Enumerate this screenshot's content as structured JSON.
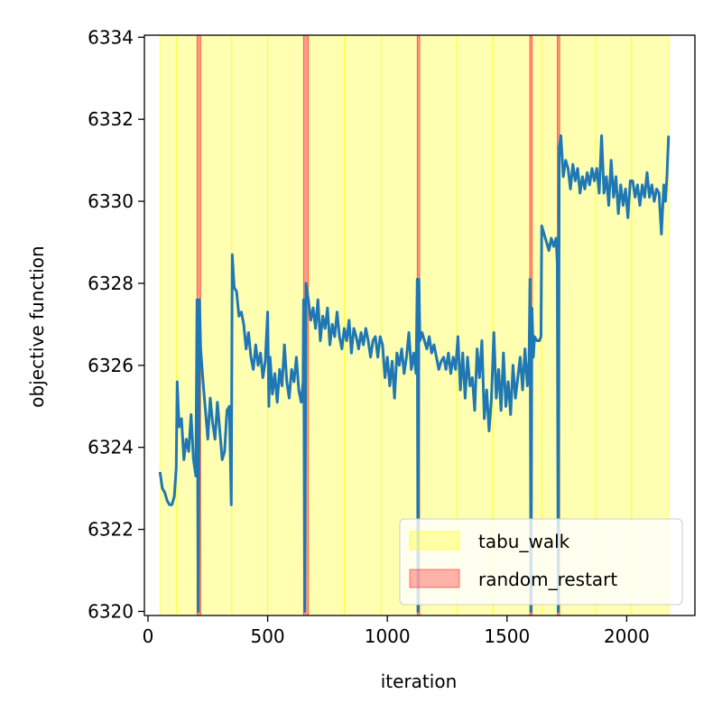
{
  "chart_data": {
    "type": "line",
    "title": "",
    "xlabel": "iteration",
    "ylabel": "objective function",
    "xlim": [
      -15,
      2285
    ],
    "ylim": [
      6319.9,
      6334.05
    ],
    "xticks": [
      0,
      500,
      1000,
      1500,
      2000
    ],
    "yticks": [
      6320,
      6322,
      6324,
      6326,
      6328,
      6330,
      6332,
      6334
    ],
    "grid": false,
    "legend_position": "lower-right",
    "legend": [
      {
        "label": "tabu_walk",
        "color": "#ffff00"
      },
      {
        "label": "random_restart",
        "color": "#ff0000"
      }
    ],
    "line_color": "#1f77b4",
    "tabu_walk_segments": [
      [
        50,
        120
      ],
      [
        120,
        205
      ],
      [
        220,
        350
      ],
      [
        350,
        500
      ],
      [
        500,
        650
      ],
      [
        670,
        820
      ],
      [
        820,
        975
      ],
      [
        975,
        1125
      ],
      [
        1135,
        1290
      ],
      [
        1290,
        1440
      ],
      [
        1440,
        1595
      ],
      [
        1605,
        1645
      ],
      [
        1645,
        1710
      ],
      [
        1720,
        1870
      ],
      [
        1870,
        2020
      ],
      [
        2020,
        2175
      ]
    ],
    "random_restart_spans": [
      [
        205,
        220
      ],
      [
        650,
        670
      ],
      [
        1125,
        1135
      ],
      [
        1595,
        1605
      ],
      [
        1710,
        1720
      ]
    ],
    "series": [
      {
        "name": "objective",
        "points": [
          [
            50,
            6323.4
          ],
          [
            60,
            6323.0
          ],
          [
            70,
            6322.9
          ],
          [
            80,
            6322.7
          ],
          [
            90,
            6322.6
          ],
          [
            100,
            6322.6
          ],
          [
            110,
            6322.8
          ],
          [
            118,
            6323.5
          ],
          [
            122,
            6325.6
          ],
          [
            130,
            6324.5
          ],
          [
            140,
            6324.7
          ],
          [
            150,
            6323.7
          ],
          [
            160,
            6324.2
          ],
          [
            170,
            6323.9
          ],
          [
            180,
            6324.8
          ],
          [
            190,
            6323.7
          ],
          [
            200,
            6323.3
          ],
          [
            205,
            6327.6
          ],
          [
            210,
            6320.0
          ],
          [
            215,
            6327.6
          ],
          [
            220,
            6326.4
          ],
          [
            230,
            6325.6
          ],
          [
            240,
            6324.9
          ],
          [
            250,
            6324.2
          ],
          [
            260,
            6325.2
          ],
          [
            270,
            6324.6
          ],
          [
            280,
            6324.2
          ],
          [
            290,
            6325.1
          ],
          [
            300,
            6324.4
          ],
          [
            310,
            6323.7
          ],
          [
            320,
            6323.9
          ],
          [
            330,
            6324.9
          ],
          [
            340,
            6325.0
          ],
          [
            348,
            6322.6
          ],
          [
            352,
            6328.7
          ],
          [
            360,
            6327.9
          ],
          [
            370,
            6327.8
          ],
          [
            380,
            6327.2
          ],
          [
            390,
            6327.3
          ],
          [
            400,
            6327.0
          ],
          [
            410,
            6326.4
          ],
          [
            420,
            6326.8
          ],
          [
            430,
            6326.2
          ],
          [
            440,
            6325.9
          ],
          [
            450,
            6326.5
          ],
          [
            460,
            6326.0
          ],
          [
            470,
            6326.3
          ],
          [
            480,
            6325.7
          ],
          [
            490,
            6326.1
          ],
          [
            500,
            6327.3
          ],
          [
            505,
            6325.0
          ],
          [
            510,
            6326.2
          ],
          [
            520,
            6325.3
          ],
          [
            530,
            6325.8
          ],
          [
            540,
            6325.1
          ],
          [
            550,
            6325.9
          ],
          [
            560,
            6325.5
          ],
          [
            570,
            6326.5
          ],
          [
            580,
            6325.6
          ],
          [
            590,
            6325.2
          ],
          [
            600,
            6325.9
          ],
          [
            610,
            6325.6
          ],
          [
            620,
            6326.2
          ],
          [
            630,
            6325.4
          ],
          [
            640,
            6325.1
          ],
          [
            648,
            6325.6
          ],
          [
            650,
            6327.6
          ],
          [
            655,
            6320.0
          ],
          [
            660,
            6328.0
          ],
          [
            670,
            6327.6
          ],
          [
            680,
            6327.1
          ],
          [
            690,
            6327.4
          ],
          [
            700,
            6326.9
          ],
          [
            710,
            6327.6
          ],
          [
            720,
            6326.6
          ],
          [
            730,
            6327.2
          ],
          [
            740,
            6326.9
          ],
          [
            750,
            6327.4
          ],
          [
            760,
            6326.5
          ],
          [
            770,
            6327.0
          ],
          [
            780,
            6326.7
          ],
          [
            790,
            6327.3
          ],
          [
            800,
            6326.7
          ],
          [
            810,
            6326.4
          ],
          [
            820,
            6326.9
          ],
          [
            830,
            6326.6
          ],
          [
            840,
            6327.1
          ],
          [
            850,
            6326.3
          ],
          [
            860,
            6326.9
          ],
          [
            870,
            6326.7
          ],
          [
            880,
            6326.4
          ],
          [
            890,
            6326.8
          ],
          [
            900,
            6326.5
          ],
          [
            910,
            6326.9
          ],
          [
            920,
            6326.6
          ],
          [
            930,
            6326.2
          ],
          [
            940,
            6326.6
          ],
          [
            950,
            6326.7
          ],
          [
            960,
            6326.2
          ],
          [
            970,
            6326.7
          ],
          [
            980,
            6326.5
          ],
          [
            990,
            6325.7
          ],
          [
            1000,
            6326.2
          ],
          [
            1010,
            6325.5
          ],
          [
            1020,
            6326.1
          ],
          [
            1030,
            6325.2
          ],
          [
            1040,
            6326.3
          ],
          [
            1050,
            6326.0
          ],
          [
            1060,
            6326.4
          ],
          [
            1070,
            6325.8
          ],
          [
            1080,
            6326.2
          ],
          [
            1090,
            6326.8
          ],
          [
            1100,
            6325.9
          ],
          [
            1110,
            6326.3
          ],
          [
            1120,
            6325.8
          ],
          [
            1125,
            6328.1
          ],
          [
            1128,
            6320.0
          ],
          [
            1132,
            6328.1
          ],
          [
            1136,
            6326.6
          ],
          [
            1145,
            6326.8
          ],
          [
            1155,
            6326.6
          ],
          [
            1165,
            6326.4
          ],
          [
            1175,
            6326.7
          ],
          [
            1185,
            6326.3
          ],
          [
            1195,
            6326.5
          ],
          [
            1205,
            6326.2
          ],
          [
            1215,
            6325.9
          ],
          [
            1225,
            6326.1
          ],
          [
            1235,
            6326.2
          ],
          [
            1245,
            6325.9
          ],
          [
            1255,
            6326.3
          ],
          [
            1265,
            6325.8
          ],
          [
            1275,
            6326.2
          ],
          [
            1285,
            6325.9
          ],
          [
            1295,
            6326.7
          ],
          [
            1305,
            6325.4
          ],
          [
            1315,
            6326.3
          ],
          [
            1325,
            6325.2
          ],
          [
            1335,
            6326.2
          ],
          [
            1345,
            6325.5
          ],
          [
            1355,
            6325.7
          ],
          [
            1365,
            6324.9
          ],
          [
            1375,
            6326.4
          ],
          [
            1385,
            6325.7
          ],
          [
            1395,
            6326.6
          ],
          [
            1405,
            6324.7
          ],
          [
            1415,
            6325.4
          ],
          [
            1425,
            6324.4
          ],
          [
            1435,
            6325.2
          ],
          [
            1445,
            6326.8
          ],
          [
            1455,
            6325.2
          ],
          [
            1465,
            6325.9
          ],
          [
            1475,
            6324.9
          ],
          [
            1485,
            6326.3
          ],
          [
            1495,
            6325.0
          ],
          [
            1505,
            6325.6
          ],
          [
            1515,
            6324.8
          ],
          [
            1525,
            6326.0
          ],
          [
            1535,
            6325.2
          ],
          [
            1545,
            6325.7
          ],
          [
            1555,
            6326.2
          ],
          [
            1565,
            6325.4
          ],
          [
            1575,
            6326.4
          ],
          [
            1585,
            6325.5
          ],
          [
            1592,
            6326.1
          ],
          [
            1596,
            6328.1
          ],
          [
            1600,
            6320.0
          ],
          [
            1604,
            6327.4
          ],
          [
            1610,
            6326.2
          ],
          [
            1615,
            6326.7
          ],
          [
            1625,
            6326.6
          ],
          [
            1635,
            6326.6
          ],
          [
            1642,
            6326.7
          ],
          [
            1645,
            6329.4
          ],
          [
            1655,
            6329.2
          ],
          [
            1665,
            6329.0
          ],
          [
            1675,
            6328.8
          ],
          [
            1685,
            6329.1
          ],
          [
            1695,
            6328.9
          ],
          [
            1705,
            6329.1
          ],
          [
            1710,
            6328.5
          ],
          [
            1714,
            6320.0
          ],
          [
            1718,
            6331.3
          ],
          [
            1725,
            6331.6
          ],
          [
            1735,
            6330.6
          ],
          [
            1745,
            6331.0
          ],
          [
            1755,
            6330.8
          ],
          [
            1765,
            6330.3
          ],
          [
            1775,
            6330.9
          ],
          [
            1785,
            6330.5
          ],
          [
            1795,
            6330.8
          ],
          [
            1805,
            6330.2
          ],
          [
            1815,
            6330.6
          ],
          [
            1825,
            6330.3
          ],
          [
            1835,
            6330.7
          ],
          [
            1845,
            6330.4
          ],
          [
            1855,
            6330.8
          ],
          [
            1865,
            6330.5
          ],
          [
            1875,
            6330.8
          ],
          [
            1885,
            6330.2
          ],
          [
            1895,
            6331.6
          ],
          [
            1905,
            6330.2
          ],
          [
            1915,
            6330.6
          ],
          [
            1925,
            6329.9
          ],
          [
            1935,
            6331.0
          ],
          [
            1945,
            6330.1
          ],
          [
            1955,
            6330.6
          ],
          [
            1965,
            6329.7
          ],
          [
            1975,
            6330.4
          ],
          [
            1985,
            6329.9
          ],
          [
            1995,
            6330.3
          ],
          [
            2005,
            6329.6
          ],
          [
            2015,
            6330.5
          ],
          [
            2025,
            6330.5
          ],
          [
            2035,
            6330.1
          ],
          [
            2045,
            6330.4
          ],
          [
            2055,
            6329.9
          ],
          [
            2065,
            6330.4
          ],
          [
            2075,
            6330.1
          ],
          [
            2085,
            6330.7
          ],
          [
            2095,
            6330.1
          ],
          [
            2105,
            6330.4
          ],
          [
            2115,
            6330.0
          ],
          [
            2125,
            6330.3
          ],
          [
            2135,
            6330.2
          ],
          [
            2145,
            6329.2
          ],
          [
            2155,
            6330.4
          ],
          [
            2162,
            6330.0
          ],
          [
            2168,
            6330.6
          ],
          [
            2175,
            6331.6
          ]
        ]
      }
    ]
  }
}
